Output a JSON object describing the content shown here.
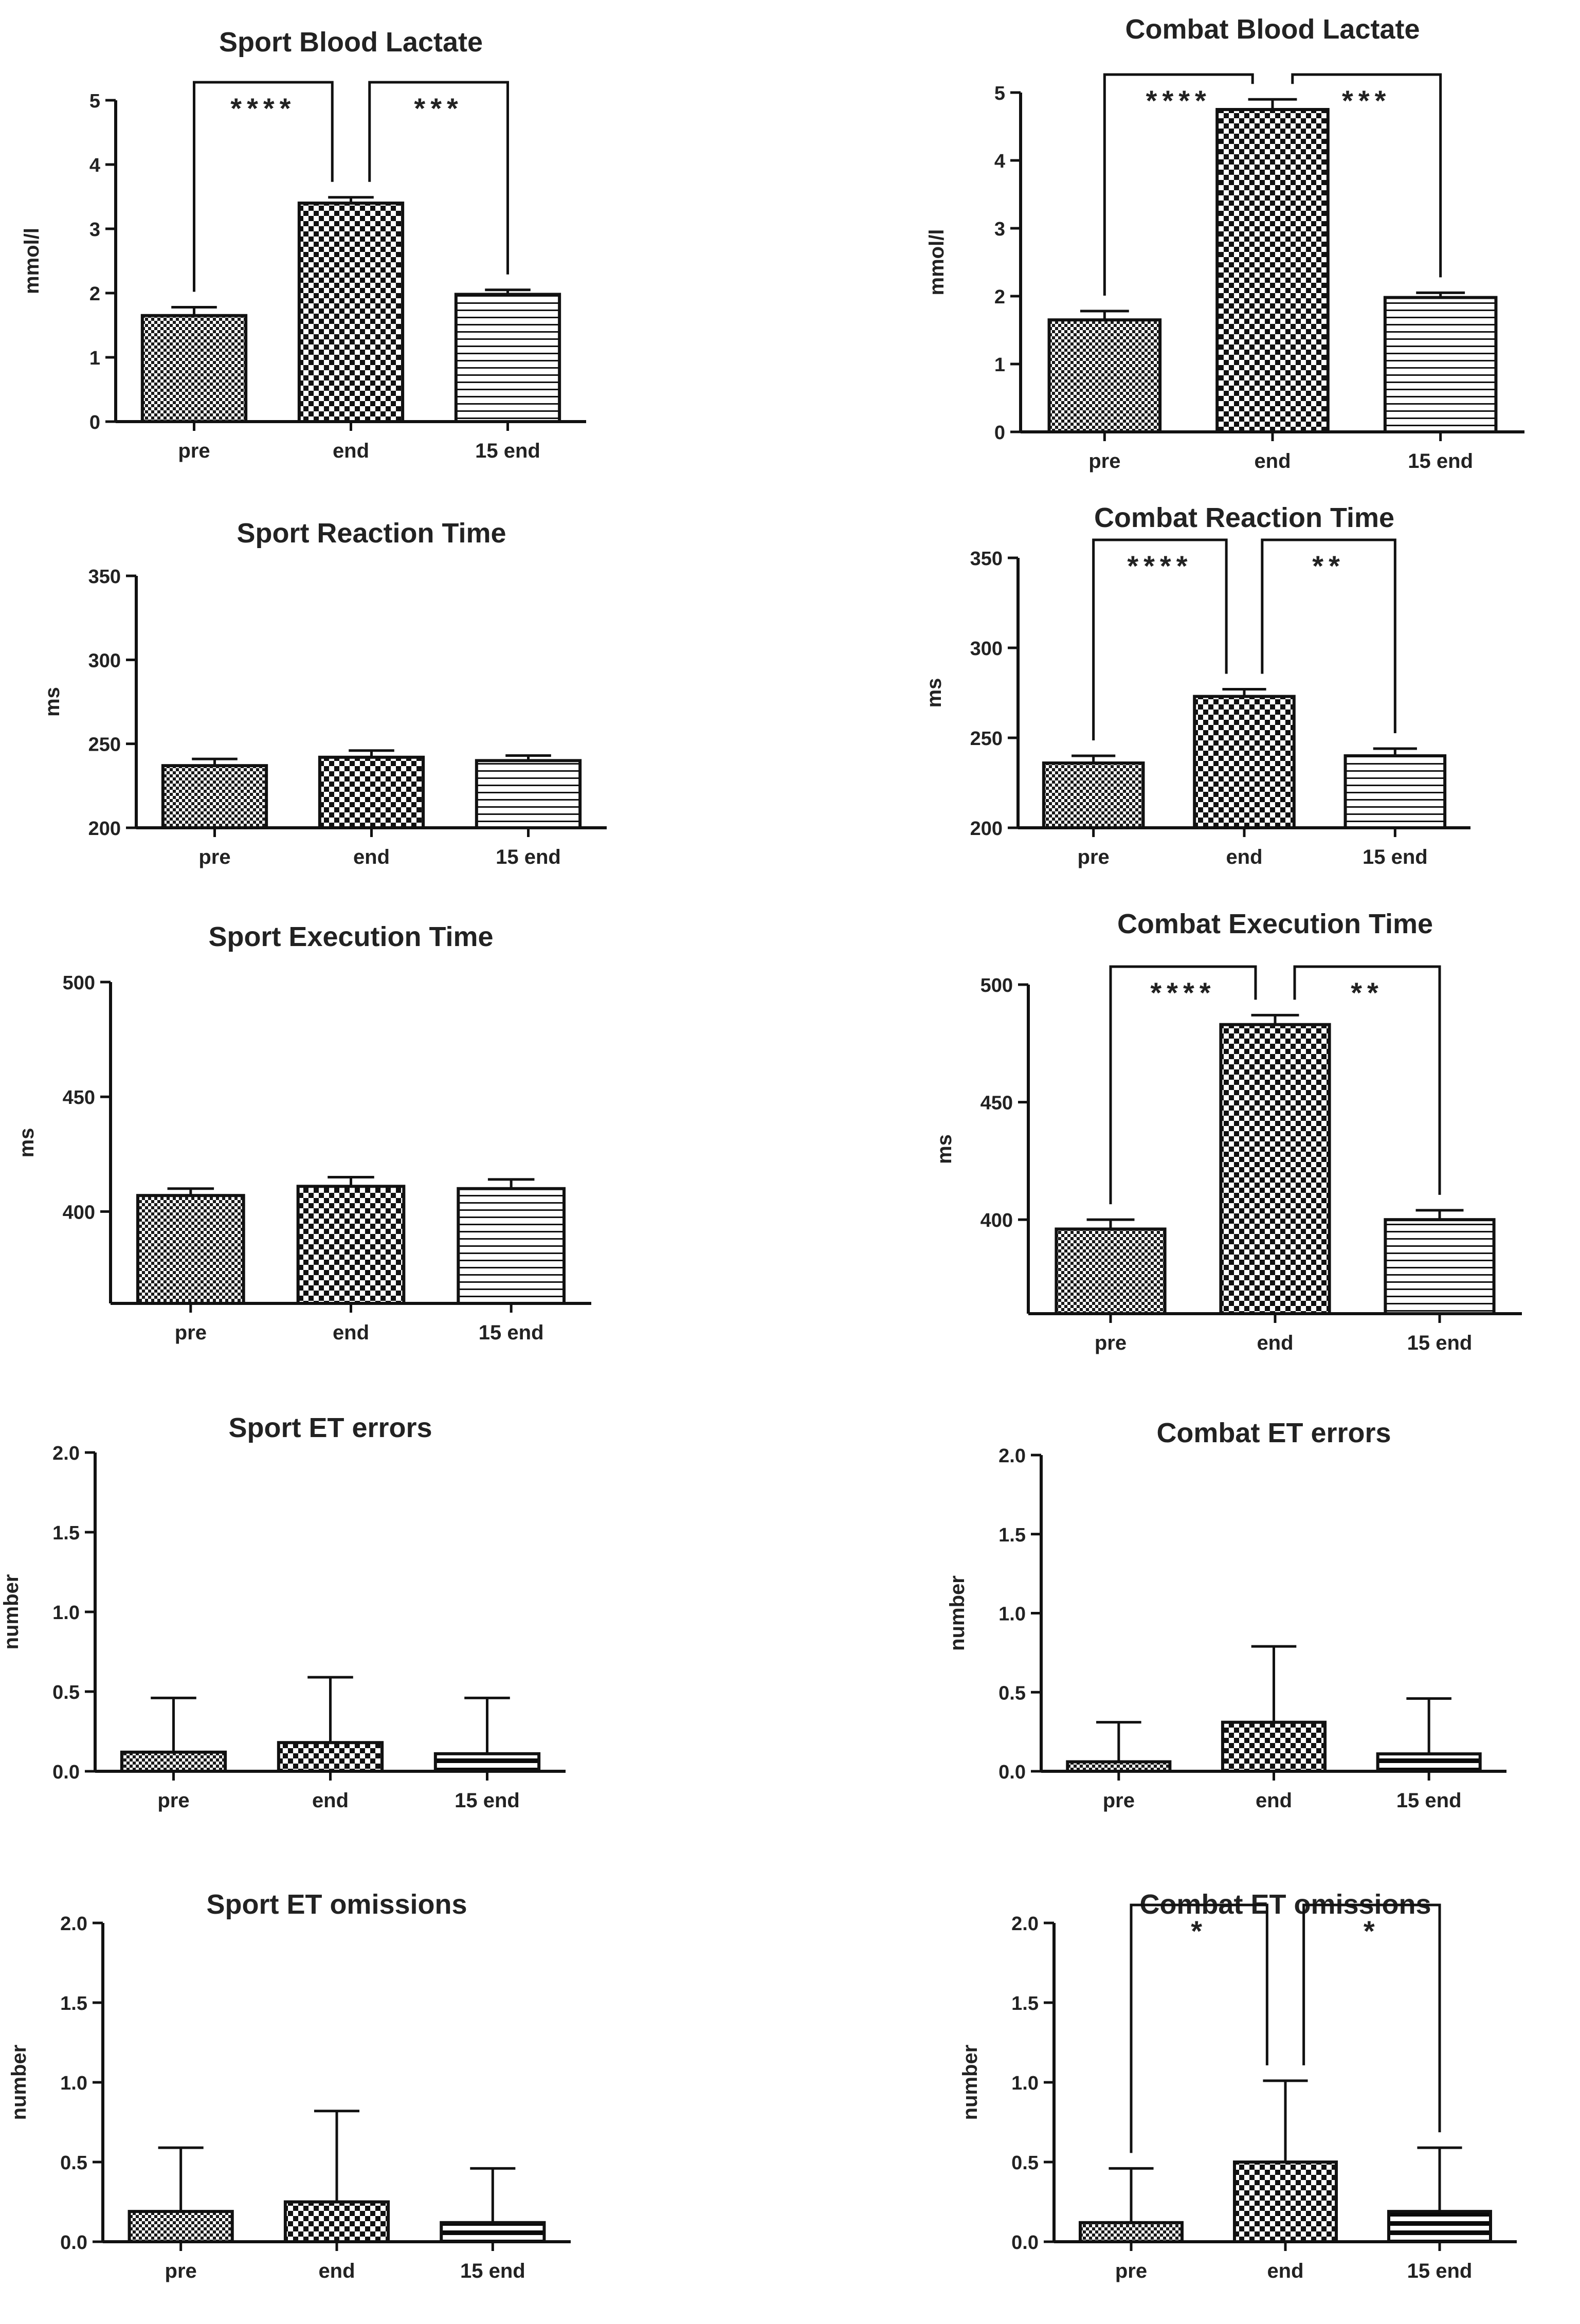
{
  "figure": {
    "background": "#ffffff",
    "ink": "#111111"
  },
  "chart_data": [
    {
      "title": "Sport Blood Lactate",
      "type": "bar",
      "ylabel": "mmol/l",
      "categories": [
        "pre",
        "end",
        "15 end"
      ],
      "values": [
        1.65,
        3.4,
        1.98
      ],
      "errors": [
        0.13,
        0.09,
        0.07
      ],
      "ylim": [
        0,
        5
      ],
      "yticks": [
        "0",
        "1",
        "2",
        "3",
        "4",
        "5"
      ],
      "patterns": [
        "fine-check",
        "coarse-check",
        "h-lines"
      ],
      "significance": [
        {
          "from": 0,
          "to": 1,
          "label": "****"
        },
        {
          "from": 1,
          "to": 2,
          "label": "***"
        }
      ]
    },
    {
      "title": "Combat Blood Lactate",
      "type": "bar",
      "ylabel": "mmol/l",
      "categories": [
        "pre",
        "end",
        "15 end"
      ],
      "values": [
        1.65,
        4.75,
        1.98
      ],
      "errors": [
        0.13,
        0.15,
        0.07
      ],
      "ylim": [
        0,
        5
      ],
      "yticks": [
        "0",
        "1",
        "2",
        "3",
        "4",
        "5"
      ],
      "patterns": [
        "fine-check",
        "coarse-check",
        "h-lines"
      ],
      "significance": [
        {
          "from": 0,
          "to": 1,
          "label": "****"
        },
        {
          "from": 1,
          "to": 2,
          "label": "***"
        }
      ]
    },
    {
      "title": "Sport Reaction Time",
      "type": "bar",
      "ylabel": "ms",
      "categories": [
        "pre",
        "end",
        "15 end"
      ],
      "values": [
        237,
        242,
        240
      ],
      "errors": [
        4,
        4,
        3
      ],
      "ylim": [
        200,
        350
      ],
      "yticks": [
        "200",
        "250",
        "300",
        "350"
      ],
      "patterns": [
        "fine-check",
        "coarse-check",
        "h-lines"
      ],
      "significance": []
    },
    {
      "title": "Combat Reaction Time",
      "type": "bar",
      "ylabel": "ms",
      "categories": [
        "pre",
        "end",
        "15 end"
      ],
      "values": [
        236,
        273,
        240
      ],
      "errors": [
        4,
        4,
        4
      ],
      "ylim": [
        200,
        350
      ],
      "yticks": [
        "200",
        "250",
        "300",
        "350"
      ],
      "patterns": [
        "fine-check",
        "coarse-check",
        "h-lines"
      ],
      "significance": [
        {
          "from": 0,
          "to": 1,
          "label": "****"
        },
        {
          "from": 1,
          "to": 2,
          "label": "**"
        }
      ]
    },
    {
      "title": "Sport Execution Time",
      "type": "bar",
      "ylabel": "ms",
      "categories": [
        "pre",
        "end",
        "15 end"
      ],
      "values": [
        407,
        411,
        410
      ],
      "errors": [
        3,
        4,
        4
      ],
      "ylim": [
        360,
        500
      ],
      "yticks": [
        "400",
        "450",
        "500"
      ],
      "patterns": [
        "fine-check",
        "coarse-check",
        "h-lines"
      ],
      "significance": []
    },
    {
      "title": "Combat Execution Time",
      "type": "bar",
      "ylabel": "ms",
      "categories": [
        "pre",
        "end",
        "15 end"
      ],
      "values": [
        396,
        483,
        400
      ],
      "errors": [
        4,
        4,
        4
      ],
      "ylim": [
        360,
        500
      ],
      "yticks": [
        "400",
        "450",
        "500"
      ],
      "patterns": [
        "fine-check",
        "coarse-check",
        "h-lines"
      ],
      "significance": [
        {
          "from": 0,
          "to": 1,
          "label": "****"
        },
        {
          "from": 1,
          "to": 2,
          "label": "**"
        }
      ]
    },
    {
      "title": "Sport ET errors",
      "type": "bar",
      "ylabel": "number",
      "categories": [
        "pre",
        "end",
        "15 end"
      ],
      "values": [
        0.12,
        0.18,
        0.11
      ],
      "errors": [
        0.34,
        0.41,
        0.35
      ],
      "ylim": [
        0,
        2.0
      ],
      "yticks": [
        "0.0",
        "0.5",
        "1.0",
        "1.5",
        "2.0"
      ],
      "patterns": [
        "fine-check",
        "coarse-check",
        "bold-lines"
      ],
      "significance": []
    },
    {
      "title": "Combat ET errors",
      "type": "bar",
      "ylabel": "number",
      "categories": [
        "pre",
        "end",
        "15 end"
      ],
      "values": [
        0.06,
        0.31,
        0.11
      ],
      "errors": [
        0.25,
        0.48,
        0.35
      ],
      "ylim": [
        0,
        2.0
      ],
      "yticks": [
        "0.0",
        "0.5",
        "1.0",
        "1.5",
        "2.0"
      ],
      "patterns": [
        "fine-check",
        "coarse-check",
        "bold-lines"
      ],
      "significance": []
    },
    {
      "title": "Sport ET omissions",
      "type": "bar",
      "ylabel": "number",
      "categories": [
        "pre",
        "end",
        "15 end"
      ],
      "values": [
        0.19,
        0.25,
        0.12
      ],
      "errors": [
        0.4,
        0.57,
        0.34
      ],
      "ylim": [
        0,
        2.0
      ],
      "yticks": [
        "0.0",
        "0.5",
        "1.0",
        "1.5",
        "2.0"
      ],
      "patterns": [
        "fine-check",
        "coarse-check",
        "bold-lines"
      ],
      "significance": []
    },
    {
      "title": "Combat ET omissions",
      "type": "bar",
      "ylabel": "number",
      "categories": [
        "pre",
        "end",
        "15 end"
      ],
      "values": [
        0.12,
        0.5,
        0.19
      ],
      "errors": [
        0.34,
        0.51,
        0.4
      ],
      "ylim": [
        0,
        2.0
      ],
      "yticks": [
        "0.0",
        "0.5",
        "1.0",
        "1.5",
        "2.0"
      ],
      "patterns": [
        "fine-check",
        "coarse-check",
        "bold-lines"
      ],
      "significance": [
        {
          "from": 0,
          "to": 1,
          "label": "*"
        },
        {
          "from": 1,
          "to": 2,
          "label": "*"
        }
      ]
    }
  ]
}
